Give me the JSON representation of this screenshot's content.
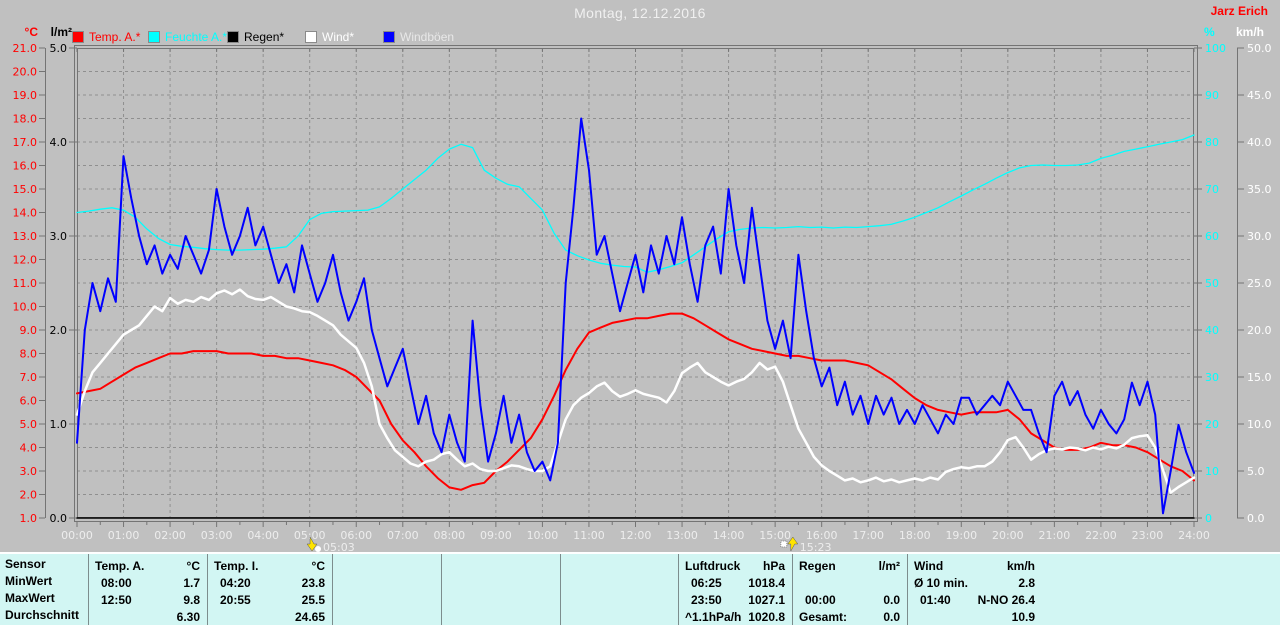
{
  "header": {
    "title": "Montag, 12.12.2016",
    "user": "Jarz Erich"
  },
  "legend": [
    {
      "label": "Temp. A.*",
      "color": "#ff0000",
      "text_color": "#ff0000"
    },
    {
      "label": "Feuchte A.*",
      "color": "#00ffff",
      "text_color": "#00ffff"
    },
    {
      "label": "Regen*",
      "color": "#000000",
      "text_color": "#000000"
    },
    {
      "label": "Wind*",
      "color": "#ffffff",
      "text_color": "#ffffff"
    },
    {
      "label": "Windböen",
      "color": "#0000ff",
      "text_color": "#e8e8e8"
    }
  ],
  "chart_data": {
    "type": "line",
    "title": "Montag, 12.12.2016",
    "grid": true,
    "x_range_hours": [
      0,
      24
    ],
    "x_tick_labels": [
      "00:00",
      "01:00",
      "02:00",
      "03:00",
      "04:00",
      "05:00",
      "06:00",
      "07:00",
      "08:00",
      "09:00",
      "10:00",
      "11:00",
      "12:00",
      "13:00",
      "14:00",
      "15:00",
      "16:00",
      "17:00",
      "18:00",
      "19:00",
      "20:00",
      "21:00",
      "22:00",
      "23:00",
      "24:00"
    ],
    "axes": {
      "temp": {
        "unit": "°C",
        "min": 1.0,
        "max": 21.0,
        "tick_step": 1.0,
        "decimals": 1,
        "color": "#ff0000",
        "side": "left"
      },
      "rain": {
        "unit": "l/m²",
        "min": 0.0,
        "max": 5.0,
        "tick_step": 1.0,
        "decimals": 1,
        "color": "#000000",
        "side": "left"
      },
      "humidity": {
        "unit": "%",
        "min": 0,
        "max": 100,
        "tick_step": 10,
        "decimals": 0,
        "color": "#00ffff",
        "side": "right"
      },
      "wind": {
        "unit": "km/h",
        "min": 0.0,
        "max": 50.0,
        "tick_step": 5.0,
        "decimals": 1,
        "color": "#ffffff",
        "side": "right"
      }
    },
    "markers": [
      {
        "label": "05:03",
        "hour": 5.05,
        "direction": "down"
      },
      {
        "label": "15:23",
        "hour": 15.38,
        "direction": "up"
      }
    ],
    "series": [
      {
        "name": "Temp. A.",
        "axis": "temp",
        "color": "#ff0000",
        "width": 2,
        "step_min": 15,
        "values": [
          6.3,
          6.4,
          6.5,
          6.8,
          7.1,
          7.4,
          7.6,
          7.8,
          8.0,
          8.0,
          8.1,
          8.1,
          8.1,
          8.0,
          8.0,
          8.0,
          7.9,
          7.9,
          7.8,
          7.8,
          7.7,
          7.6,
          7.5,
          7.3,
          7.0,
          6.5,
          6.0,
          5.0,
          4.3,
          3.8,
          3.2,
          2.7,
          2.3,
          2.2,
          2.4,
          2.5,
          3.0,
          3.4,
          3.9,
          4.4,
          5.2,
          6.2,
          7.3,
          8.2,
          8.9,
          9.1,
          9.3,
          9.4,
          9.5,
          9.5,
          9.6,
          9.7,
          9.7,
          9.5,
          9.2,
          8.9,
          8.6,
          8.4,
          8.2,
          8.1,
          8.0,
          7.9,
          7.9,
          7.8,
          7.7,
          7.7,
          7.7,
          7.6,
          7.5,
          7.2,
          6.9,
          6.5,
          6.1,
          5.8,
          5.6,
          5.5,
          5.4,
          5.5,
          5.5,
          5.5,
          5.6,
          5.2,
          4.6,
          4.3,
          4.0,
          3.9,
          3.9,
          4.0,
          4.2,
          4.1,
          4.1,
          4.0,
          3.8,
          3.5,
          3.2,
          3.0,
          2.6
        ]
      },
      {
        "name": "Feuchte A.",
        "axis": "humidity",
        "color": "#00ffff",
        "width": 1.3,
        "step_min": 15,
        "values": [
          65.0,
          65.3,
          65.7,
          66.0,
          65.5,
          64.0,
          61.5,
          59.5,
          58.2,
          57.8,
          57.6,
          57.3,
          57.1,
          57.0,
          57.0,
          57.1,
          57.2,
          57.4,
          57.7,
          60.0,
          63.5,
          64.8,
          65.2,
          65.3,
          65.4,
          65.5,
          66.2,
          68.0,
          70.0,
          72.0,
          74.0,
          76.5,
          78.5,
          79.5,
          78.8,
          74.0,
          72.3,
          71.0,
          70.5,
          68.0,
          65.5,
          60.6,
          57.0,
          55.8,
          54.9,
          54.2,
          53.8,
          53.5,
          53.4,
          52.3,
          52.8,
          53.5,
          54.3,
          56.0,
          57.7,
          59.4,
          60.9,
          61.4,
          61.7,
          61.8,
          61.7,
          61.8,
          62.0,
          61.8,
          61.9,
          61.7,
          61.9,
          61.8,
          62.0,
          62.2,
          62.5,
          63.2,
          64.0,
          65.0,
          66.0,
          67.3,
          68.5,
          69.8,
          71.0,
          72.3,
          73.5,
          74.5,
          75.0,
          75.1,
          75.0,
          75.0,
          75.1,
          75.5,
          76.5,
          77.2,
          78.0,
          78.5,
          79.0,
          79.5,
          80.0,
          80.5,
          81.5
        ]
      },
      {
        "name": "Regen",
        "axis": "rain",
        "color": "#000000",
        "width": 1.5,
        "step_min": 60,
        "values": [
          0,
          0,
          0,
          0,
          0,
          0,
          0,
          0,
          0,
          0,
          0,
          0,
          0,
          0,
          0,
          0,
          0,
          0,
          0,
          0,
          0,
          0,
          0,
          0,
          0
        ]
      },
      {
        "name": "Wind",
        "axis": "wind",
        "color": "#ffffff",
        "width": 2.5,
        "step_min": 10,
        "values": [
          11.0,
          13.5,
          15.5,
          16.5,
          17.5,
          18.5,
          19.5,
          20.0,
          20.5,
          21.5,
          22.5,
          22.0,
          23.4,
          22.8,
          23.2,
          23.0,
          23.5,
          23.2,
          23.9,
          24.2,
          23.8,
          24.3,
          23.6,
          23.3,
          23.2,
          23.5,
          23.0,
          22.5,
          22.3,
          22.0,
          21.9,
          21.5,
          21.0,
          20.5,
          19.5,
          18.8,
          18.1,
          16.5,
          14.0,
          10.0,
          8.5,
          7.2,
          6.5,
          5.8,
          5.5,
          6.0,
          6.2,
          6.8,
          7.0,
          6.2,
          5.5,
          5.8,
          5.2,
          5.0,
          5.0,
          5.3,
          5.6,
          5.5,
          5.2,
          5.0,
          5.0,
          5.5,
          8.0,
          10.5,
          12.0,
          12.8,
          13.3,
          14.0,
          14.4,
          13.5,
          12.9,
          13.2,
          13.6,
          13.2,
          13.0,
          12.8,
          12.3,
          13.5,
          15.4,
          16.0,
          16.5,
          15.5,
          15.0,
          14.5,
          14.1,
          14.5,
          14.8,
          15.5,
          16.5,
          15.8,
          16.1,
          14.5,
          12.0,
          9.5,
          8.0,
          6.5,
          5.6,
          5.0,
          4.5,
          4.0,
          4.2,
          3.8,
          4.0,
          4.3,
          3.9,
          4.1,
          3.8,
          4.0,
          4.2,
          4.0,
          4.3,
          4.1,
          4.9,
          5.2,
          5.4,
          5.3,
          5.5,
          5.5,
          6.0,
          7.0,
          8.3,
          8.6,
          7.5,
          6.2,
          6.8,
          7.2,
          7.4,
          7.3,
          7.5,
          7.4,
          7.2,
          7.5,
          7.3,
          7.6,
          7.4,
          7.8,
          8.5,
          8.7,
          8.8,
          7.5,
          5.1,
          2.7,
          3.3,
          3.8,
          4.3
        ]
      },
      {
        "name": "Windböen",
        "axis": "wind",
        "color": "#0000ff",
        "width": 2,
        "step_min": 10,
        "values": [
          8,
          20,
          25,
          22,
          25.5,
          23,
          38.5,
          34,
          30,
          27,
          29,
          26,
          28,
          26.5,
          30,
          28,
          26,
          28.5,
          35,
          31,
          28,
          30,
          33,
          29,
          31,
          28,
          25,
          27,
          24,
          29,
          26,
          23,
          25,
          28,
          24,
          21,
          23,
          25.5,
          20,
          17,
          14,
          16,
          18,
          14,
          10,
          13,
          9,
          7,
          11,
          8,
          6,
          21,
          12,
          6,
          9,
          13,
          8,
          11,
          7,
          5,
          6,
          4,
          8,
          25,
          33,
          42.5,
          37,
          28,
          30,
          26,
          22,
          25,
          28,
          24,
          29,
          26,
          30,
          27,
          32,
          27,
          23,
          29,
          31,
          26,
          35,
          29,
          25,
          33,
          27,
          21,
          18,
          21,
          17,
          28,
          22,
          17,
          14,
          16,
          12,
          14.5,
          11,
          13,
          10,
          13,
          11,
          12.8,
          10,
          11.5,
          10,
          12,
          10.5,
          9,
          11,
          10,
          12.8,
          12.8,
          11,
          12,
          13,
          12,
          14.5,
          13,
          11.5,
          11.5,
          9,
          7,
          13,
          14.5,
          12,
          13.5,
          11,
          9.5,
          11.5,
          10,
          9,
          10.5,
          14.4,
          12,
          14.5,
          11,
          0.5,
          5,
          9.9,
          7,
          4.8
        ]
      }
    ]
  },
  "table": {
    "row_labels": [
      "Sensor",
      "MinWert",
      "MaxWert",
      "Durchschnitt"
    ],
    "columns": [
      {
        "name": "Temp. A.",
        "unit": "°C",
        "rows": [
          [
            "08:00",
            "1.7"
          ],
          [
            "12:50",
            "9.8"
          ],
          [
            "",
            "6.30"
          ]
        ]
      },
      {
        "name": "Temp. I.",
        "unit": "°C",
        "rows": [
          [
            "04:20",
            "23.8"
          ],
          [
            "20:55",
            "25.5"
          ],
          [
            "",
            "24.65"
          ]
        ]
      },
      {
        "name": "Luftdruck",
        "unit": "hPa",
        "rows": [
          [
            "06:25",
            "1018.4"
          ],
          [
            "23:50",
            "1027.1"
          ],
          [
            "^1.1hPa/h",
            "1020.8"
          ]
        ]
      },
      {
        "name": "Regen",
        "unit": "l/m²",
        "rows": [
          [
            "",
            ""
          ],
          [
            "00:00",
            "0.0"
          ],
          [
            "Gesamt:",
            "0.0"
          ]
        ]
      },
      {
        "name": "Wind",
        "unit": "km/h",
        "rows": [
          [
            "Ø 10 min.",
            "2.8"
          ],
          [
            "01:40",
            "N-NO 26.4"
          ],
          [
            "",
            "10.9"
          ]
        ]
      }
    ]
  }
}
